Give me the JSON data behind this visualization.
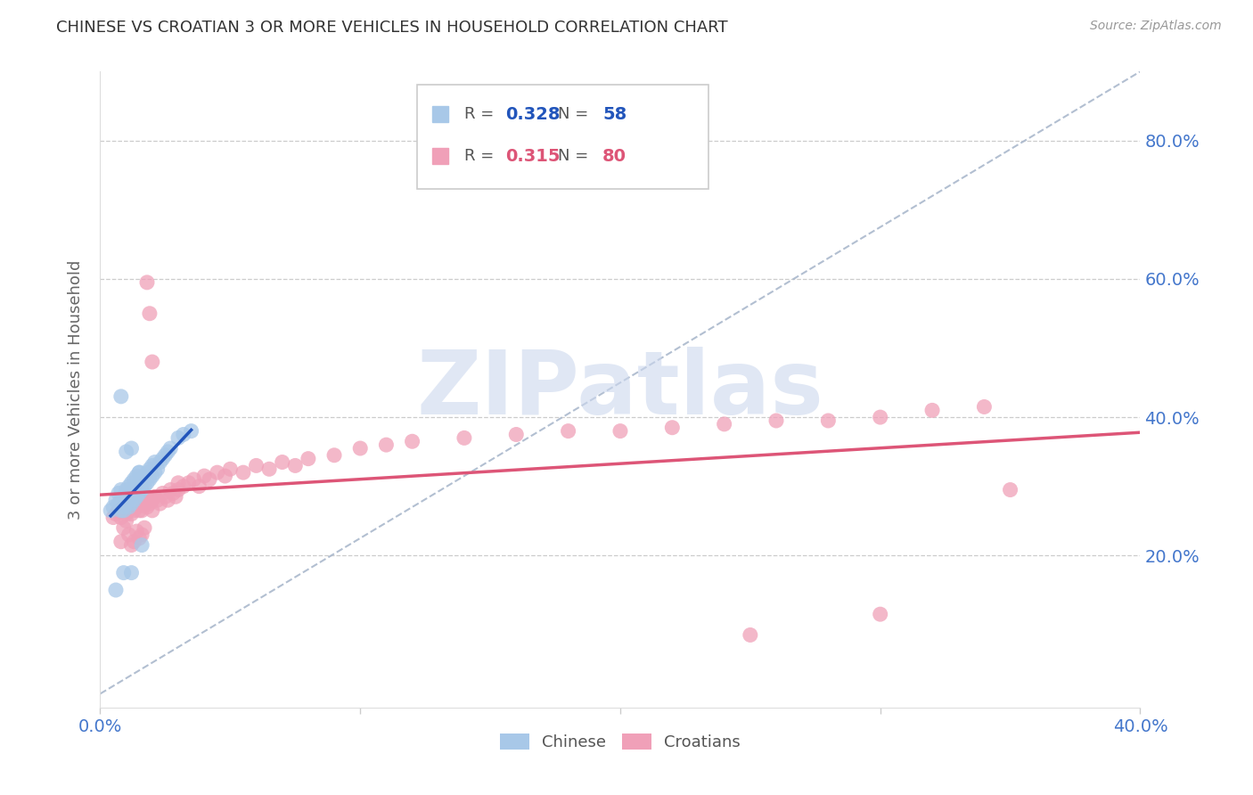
{
  "title": "CHINESE VS CROATIAN 3 OR MORE VEHICLES IN HOUSEHOLD CORRELATION CHART",
  "source": "Source: ZipAtlas.com",
  "ylabel": "3 or more Vehicles in Household",
  "xlim": [
    0.0,
    0.4
  ],
  "ylim": [
    -0.02,
    0.9
  ],
  "ytick_vals": [
    0.2,
    0.4,
    0.6,
    0.8
  ],
  "ytick_labels": [
    "20.0%",
    "40.0%",
    "60.0%",
    "80.0%"
  ],
  "chinese_color": "#a8c8e8",
  "croatian_color": "#f0a0b8",
  "chinese_line_color": "#2255bb",
  "croatian_line_color": "#dd5577",
  "ref_line_color": "#aab8cc",
  "legend_R_chinese": "0.328",
  "legend_N_chinese": "58",
  "legend_R_croatian": "0.315",
  "legend_N_croatian": "80",
  "watermark": "ZIPatlas",
  "watermark_color": "#ccd8ee",
  "chinese_x": [
    0.004,
    0.005,
    0.006,
    0.007,
    0.007,
    0.008,
    0.008,
    0.008,
    0.009,
    0.009,
    0.009,
    0.01,
    0.01,
    0.01,
    0.011,
    0.011,
    0.011,
    0.012,
    0.012,
    0.012,
    0.013,
    0.013,
    0.013,
    0.014,
    0.014,
    0.014,
    0.015,
    0.015,
    0.015,
    0.016,
    0.016,
    0.017,
    0.017,
    0.018,
    0.018,
    0.019,
    0.019,
    0.02,
    0.02,
    0.021,
    0.021,
    0.022,
    0.023,
    0.024,
    0.025,
    0.026,
    0.027,
    0.03,
    0.032,
    0.035,
    0.008,
    0.01,
    0.012,
    0.015,
    0.012,
    0.016,
    0.006,
    0.009
  ],
  "chinese_y": [
    0.265,
    0.27,
    0.28,
    0.275,
    0.29,
    0.265,
    0.28,
    0.295,
    0.27,
    0.285,
    0.265,
    0.275,
    0.285,
    0.295,
    0.27,
    0.28,
    0.3,
    0.275,
    0.29,
    0.305,
    0.28,
    0.295,
    0.31,
    0.285,
    0.3,
    0.315,
    0.29,
    0.305,
    0.32,
    0.295,
    0.31,
    0.3,
    0.315,
    0.305,
    0.32,
    0.31,
    0.325,
    0.315,
    0.33,
    0.32,
    0.335,
    0.325,
    0.335,
    0.34,
    0.345,
    0.35,
    0.355,
    0.37,
    0.375,
    0.38,
    0.43,
    0.35,
    0.355,
    0.32,
    0.175,
    0.215,
    0.15,
    0.175
  ],
  "croatian_x": [
    0.005,
    0.006,
    0.007,
    0.008,
    0.009,
    0.01,
    0.01,
    0.011,
    0.012,
    0.012,
    0.013,
    0.013,
    0.014,
    0.015,
    0.015,
    0.016,
    0.016,
    0.017,
    0.018,
    0.018,
    0.019,
    0.02,
    0.02,
    0.021,
    0.022,
    0.023,
    0.024,
    0.025,
    0.026,
    0.027,
    0.028,
    0.029,
    0.03,
    0.032,
    0.034,
    0.036,
    0.038,
    0.04,
    0.042,
    0.045,
    0.048,
    0.05,
    0.055,
    0.06,
    0.065,
    0.07,
    0.075,
    0.08,
    0.09,
    0.1,
    0.11,
    0.12,
    0.14,
    0.16,
    0.18,
    0.2,
    0.22,
    0.24,
    0.26,
    0.28,
    0.3,
    0.32,
    0.34,
    0.008,
    0.009,
    0.01,
    0.011,
    0.012,
    0.013,
    0.014,
    0.015,
    0.016,
    0.017,
    0.018,
    0.019,
    0.02,
    0.03,
    0.35,
    0.25,
    0.3
  ],
  "croatian_y": [
    0.255,
    0.26,
    0.265,
    0.255,
    0.265,
    0.27,
    0.26,
    0.265,
    0.27,
    0.26,
    0.265,
    0.275,
    0.27,
    0.265,
    0.275,
    0.265,
    0.28,
    0.275,
    0.27,
    0.285,
    0.275,
    0.28,
    0.265,
    0.285,
    0.28,
    0.275,
    0.29,
    0.285,
    0.28,
    0.295,
    0.29,
    0.285,
    0.295,
    0.3,
    0.305,
    0.31,
    0.3,
    0.315,
    0.31,
    0.32,
    0.315,
    0.325,
    0.32,
    0.33,
    0.325,
    0.335,
    0.33,
    0.34,
    0.345,
    0.355,
    0.36,
    0.365,
    0.37,
    0.375,
    0.38,
    0.38,
    0.385,
    0.39,
    0.395,
    0.395,
    0.4,
    0.41,
    0.415,
    0.22,
    0.24,
    0.25,
    0.23,
    0.215,
    0.22,
    0.235,
    0.225,
    0.23,
    0.24,
    0.595,
    0.55,
    0.48,
    0.305,
    0.295,
    0.085,
    0.115
  ]
}
